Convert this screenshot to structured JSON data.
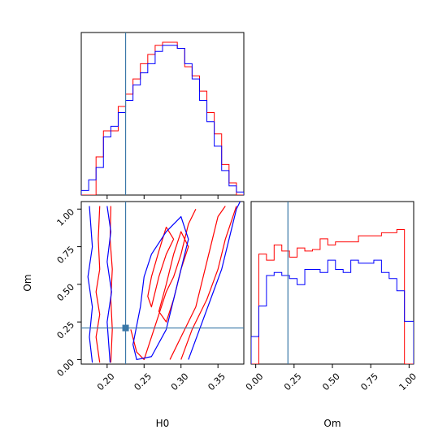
{
  "chart_data": {
    "type": "corner",
    "parameters": [
      "H0",
      "Om"
    ],
    "truth": {
      "H0": 0.225,
      "Om": 0.21,
      "color": "#3a78a8"
    },
    "series_colors": {
      "red": "#ff0000",
      "blue": "#0000ff"
    },
    "panels": [
      {
        "id": "hist_H0",
        "type": "step-histogram",
        "xlim": [
          0.165,
          0.385
        ],
        "bin_edges": [
          0.165,
          0.175,
          0.185,
          0.195,
          0.205,
          0.215,
          0.225,
          0.235,
          0.245,
          0.255,
          0.265,
          0.275,
          0.285,
          0.295,
          0.305,
          0.315,
          0.325,
          0.335,
          0.345,
          0.355,
          0.365,
          0.375,
          0.385
        ],
        "series": [
          {
            "color": "#ff0000",
            "values": [
              0.0,
              0.0,
              0.25,
              0.42,
              0.42,
              0.58,
              0.66,
              0.76,
              0.86,
              0.92,
              0.98,
              1.0,
              1.0,
              0.96,
              0.84,
              0.78,
              0.68,
              0.54,
              0.4,
              0.2,
              0.08,
              0.0
            ]
          },
          {
            "color": "#0000ff",
            "values": [
              0.03,
              0.1,
              0.18,
              0.38,
              0.45,
              0.54,
              0.62,
              0.72,
              0.8,
              0.86,
              0.94,
              0.98,
              0.98,
              0.96,
              0.86,
              0.76,
              0.62,
              0.48,
              0.32,
              0.16,
              0.06,
              0.02
            ]
          }
        ]
      },
      {
        "id": "hist_Om",
        "type": "step-histogram",
        "xlim": [
          -0.03,
          1.03
        ],
        "bin_edges": [
          -0.03,
          0.02,
          0.07,
          0.12,
          0.17,
          0.22,
          0.27,
          0.32,
          0.37,
          0.42,
          0.47,
          0.52,
          0.57,
          0.62,
          0.67,
          0.72,
          0.77,
          0.82,
          0.87,
          0.92,
          0.97,
          1.03
        ],
        "series": [
          {
            "color": "#ff0000",
            "values": [
              0.0,
              0.72,
              0.68,
              0.78,
              0.74,
              0.7,
              0.76,
              0.74,
              0.75,
              0.82,
              0.78,
              0.8,
              0.8,
              0.8,
              0.84,
              0.84,
              0.84,
              0.86,
              0.86,
              0.88,
              0.0
            ]
          },
          {
            "color": "#0000ff",
            "values": [
              0.18,
              0.38,
              0.58,
              0.6,
              0.58,
              0.56,
              0.52,
              0.62,
              0.62,
              0.6,
              0.68,
              0.62,
              0.6,
              0.68,
              0.66,
              0.66,
              0.68,
              0.6,
              0.56,
              0.48,
              0.28
            ]
          }
        ]
      },
      {
        "id": "contour_H0_Om",
        "type": "contour",
        "xlim": [
          0.165,
          0.385
        ],
        "ylim": [
          -0.03,
          1.05
        ],
        "contours": [
          {
            "color": "#ff0000",
            "points": [
              [
                0.19,
                -0.02
              ],
              [
                0.185,
                0.15
              ],
              [
                0.19,
                0.3
              ],
              [
                0.185,
                0.45
              ],
              [
                0.19,
                0.6
              ],
              [
                0.188,
                0.8
              ],
              [
                0.19,
                1.02
              ]
            ]
          },
          {
            "color": "#ff0000",
            "points": [
              [
                0.205,
                1.02
              ],
              [
                0.204,
                0.8
              ],
              [
                0.207,
                0.6
              ],
              [
                0.205,
                0.4
              ],
              [
                0.207,
                0.2
              ],
              [
                0.205,
                -0.02
              ]
            ]
          },
          {
            "color": "#ff0000",
            "points": [
              [
                0.232,
                0.2
              ],
              [
                0.24,
                0.05
              ],
              [
                0.25,
                0.0
              ],
              [
                0.26,
                0.15
              ],
              [
                0.27,
                0.3
              ],
              [
                0.28,
                0.45
              ],
              [
                0.29,
                0.55
              ],
              [
                0.3,
                0.7
              ],
              [
                0.31,
                0.9
              ],
              [
                0.32,
                1.0
              ]
            ]
          },
          {
            "color": "#ff0000",
            "points": [
              [
                0.285,
                0.0
              ],
              [
                0.3,
                0.15
              ],
              [
                0.32,
                0.35
              ],
              [
                0.33,
                0.55
              ],
              [
                0.34,
                0.75
              ],
              [
                0.35,
                0.95
              ],
              [
                0.36,
                1.02
              ]
            ]
          },
          {
            "color": "#ff0000",
            "points": [
              [
                0.3,
                0.0
              ],
              [
                0.315,
                0.2
              ],
              [
                0.335,
                0.4
              ],
              [
                0.35,
                0.6
              ],
              [
                0.36,
                0.8
              ],
              [
                0.375,
                1.02
              ]
            ]
          },
          {
            "color": "#ff0000",
            "closed": true,
            "points": [
              [
                0.26,
                0.35
              ],
              [
                0.27,
                0.55
              ],
              [
                0.28,
                0.7
              ],
              [
                0.29,
                0.8
              ],
              [
                0.28,
                0.88
              ],
              [
                0.27,
                0.72
              ],
              [
                0.26,
                0.55
              ],
              [
                0.255,
                0.42
              ]
            ]
          },
          {
            "color": "#ff0000",
            "closed": true,
            "points": [
              [
                0.28,
                0.25
              ],
              [
                0.29,
                0.4
              ],
              [
                0.3,
                0.6
              ],
              [
                0.31,
                0.75
              ],
              [
                0.3,
                0.85
              ],
              [
                0.29,
                0.7
              ],
              [
                0.28,
                0.5
              ],
              [
                0.27,
                0.32
              ]
            ]
          },
          {
            "color": "#0000ff",
            "points": [
              [
                0.18,
                -0.02
              ],
              [
                0.176,
                0.15
              ],
              [
                0.18,
                0.35
              ],
              [
                0.174,
                0.55
              ],
              [
                0.18,
                0.75
              ],
              [
                0.176,
                1.02
              ]
            ]
          },
          {
            "color": "#0000ff",
            "points": [
              [
                0.2,
                1.02
              ],
              [
                0.205,
                0.85
              ],
              [
                0.2,
                0.65
              ],
              [
                0.206,
                0.45
              ],
              [
                0.2,
                0.25
              ],
              [
                0.204,
                -0.02
              ]
            ]
          },
          {
            "color": "#0000ff",
            "closed": true,
            "points": [
              [
                0.235,
                0.1
              ],
              [
                0.245,
                0.35
              ],
              [
                0.25,
                0.55
              ],
              [
                0.26,
                0.7
              ],
              [
                0.28,
                0.85
              ],
              [
                0.3,
                0.95
              ],
              [
                0.31,
                0.8
              ],
              [
                0.3,
                0.6
              ],
              [
                0.29,
                0.4
              ],
              [
                0.28,
                0.2
              ],
              [
                0.26,
                0.02
              ],
              [
                0.24,
                0.0
              ]
            ]
          },
          {
            "color": "#0000ff",
            "points": [
              [
                0.31,
                0.0
              ],
              [
                0.325,
                0.2
              ],
              [
                0.34,
                0.4
              ],
              [
                0.355,
                0.6
              ],
              [
                0.365,
                0.8
              ],
              [
                0.375,
                1.0
              ],
              [
                0.38,
                1.05
              ]
            ]
          }
        ]
      }
    ],
    "ticks": {
      "H0": [
        0.2,
        0.25,
        0.3,
        0.35
      ],
      "H0_labels": [
        "0.20",
        "0.25",
        "0.30",
        "0.35"
      ],
      "Om": [
        0.0,
        0.25,
        0.5,
        0.75,
        1.0
      ],
      "Om_labels": [
        "0.00",
        "0.25",
        "0.50",
        "0.75",
        "1.00"
      ]
    },
    "xlabel_left": "H0",
    "xlabel_right": "Om",
    "ylabel_left": "Om"
  }
}
